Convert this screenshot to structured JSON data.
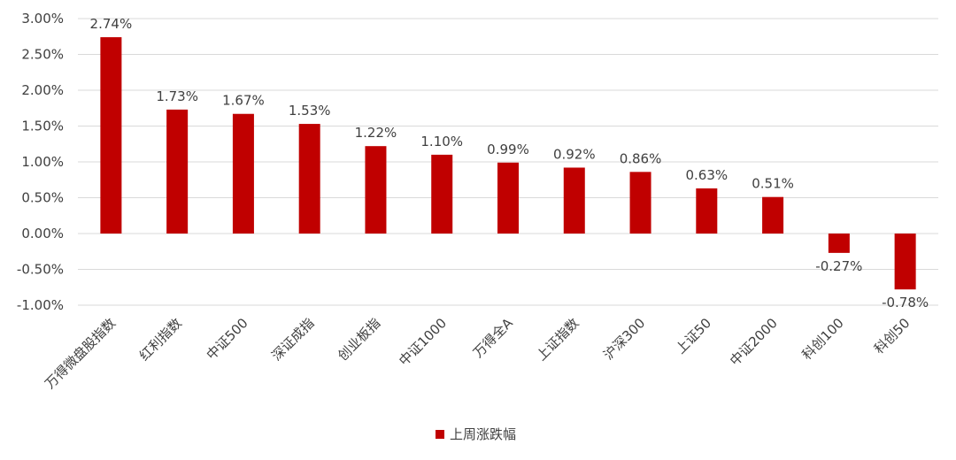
{
  "chart_data": {
    "type": "bar",
    "categories": [
      "万得微盘股指数",
      "红利指数",
      "中证500",
      "深证成指",
      "创业板指",
      "中证1000",
      "万得全A",
      "上证指数",
      "沪深300",
      "上证50",
      "中证2000",
      "科创100",
      "科创50"
    ],
    "series": [
      {
        "name": "上周涨跌幅",
        "values": [
          2.74,
          1.73,
          1.67,
          1.53,
          1.22,
          1.1,
          0.99,
          0.92,
          0.86,
          0.63,
          0.51,
          -0.27,
          -0.78
        ],
        "labels": [
          "2.74%",
          "1.73%",
          "1.67%",
          "1.53%",
          "1.22%",
          "1.10%",
          "0.99%",
          "0.92%",
          "0.86%",
          "0.63%",
          "0.51%",
          "-0.27%",
          "-0.78%"
        ],
        "color": "#C00000"
      }
    ],
    "yticks": [
      "3.00%",
      "2.50%",
      "2.00%",
      "1.50%",
      "1.00%",
      "0.50%",
      "0.00%",
      "-0.50%",
      "-1.00%"
    ],
    "ylim": [
      -1.0,
      3.0
    ],
    "grid": true,
    "legend_position": "bottom",
    "gridline_color": "#D9D9D9"
  }
}
